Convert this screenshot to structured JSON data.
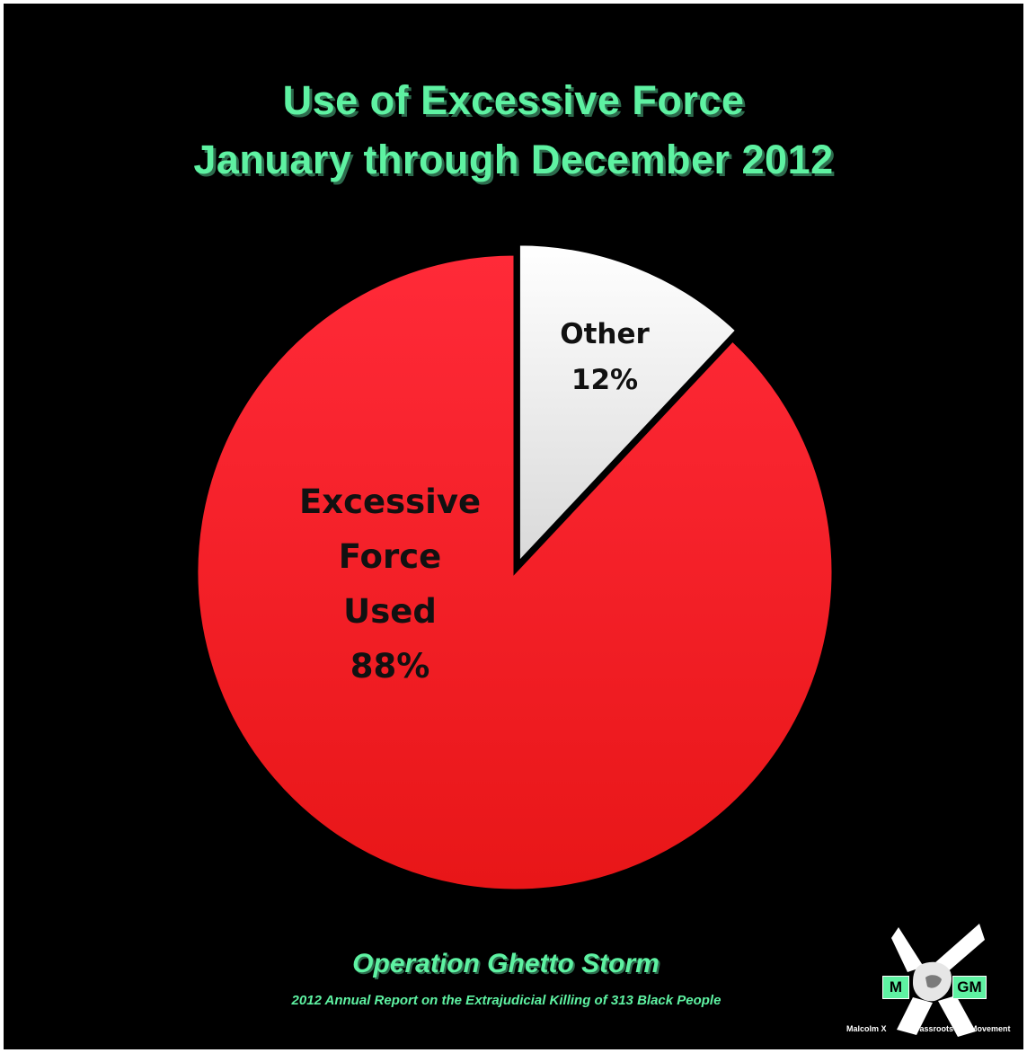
{
  "title": {
    "line1": "Use of Excessive Force",
    "line2": "January through December 2012"
  },
  "colors": {
    "background": "#000000",
    "accent": "#5ef2a2",
    "excessive_force": "#ee1c1f",
    "other": "#ffffff"
  },
  "chart_data": {
    "type": "pie",
    "title": "Use of Excessive Force January through December 2012",
    "slices": [
      {
        "label_lines": [
          "Excessive",
          "Force",
          "Used",
          "88%"
        ],
        "value": 88,
        "color": "#ee1c1f"
      },
      {
        "label_lines": [
          "Other",
          "12%"
        ],
        "value": 12,
        "color": "#ffffff",
        "exploded": true
      }
    ],
    "start": "12 o'clock, clockwise"
  },
  "footer": {
    "title": "Operation Ghetto Storm",
    "subtitle": "2012 Annual Report on the Extrajudicial Killing of 313 Black People"
  },
  "logo": {
    "left_box": "M",
    "right_box": "GM",
    "caption_left": "Malcolm X",
    "caption_mid": "Grassroots",
    "caption_right": "Movement"
  }
}
